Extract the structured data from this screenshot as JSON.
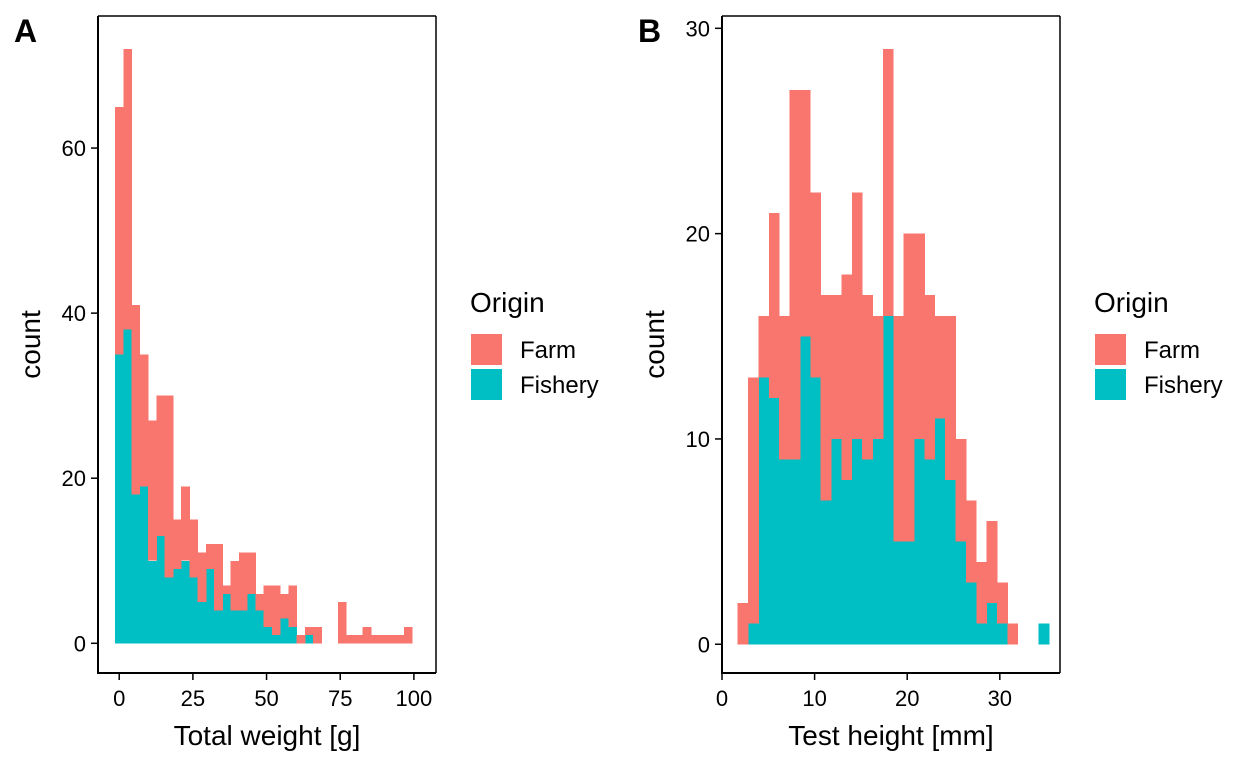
{
  "colors": {
    "farm": "#F8766D",
    "fishery": "#00BFC4",
    "axis": "#000000",
    "background": "#FFFFFF"
  },
  "chart_data": [
    {
      "type": "bar",
      "subtype": "stacked histogram",
      "panel_label": "A",
      "xlabel": "Total weight  [g]",
      "ylabel": "count",
      "xlim": [
        -7.2,
        107.5
      ],
      "ylim": [
        -3.6,
        76
      ],
      "x_ticks": [
        0,
        25,
        50,
        75,
        100
      ],
      "y_ticks": [
        0,
        20,
        40,
        60
      ],
      "bin_width": 2.8,
      "bin_starts": [
        -1.4,
        1.4,
        4.2,
        7.0,
        9.8,
        12.6,
        15.4,
        18.2,
        21.0,
        23.8,
        26.6,
        29.4,
        32.2,
        35.0,
        37.8,
        40.6,
        43.4,
        46.2,
        49.0,
        51.8,
        54.6,
        57.4,
        60.2,
        63.0,
        65.8,
        68.6,
        71.4,
        74.2,
        77.0,
        79.8,
        82.6,
        85.4,
        88.2,
        91.0,
        93.8,
        96.6,
        99.4
      ],
      "legend": {
        "title": "Origin",
        "position": "right"
      },
      "grid": false,
      "series": [
        {
          "name": "Fishery",
          "color": "#00BFC4",
          "values": [
            35,
            38,
            18,
            19,
            10,
            13,
            8,
            9,
            10,
            8,
            5,
            9,
            4,
            6,
            4,
            4,
            6,
            4,
            2,
            1,
            3,
            2,
            0,
            1,
            0,
            0,
            0,
            0,
            0,
            0,
            0,
            0,
            0,
            0,
            0,
            0,
            0
          ]
        },
        {
          "name": "Farm",
          "color": "#F8766D",
          "values": [
            30,
            34,
            23,
            16,
            17,
            17,
            22,
            6,
            9,
            7,
            6,
            3,
            8,
            1,
            6,
            7,
            5,
            2,
            5,
            6,
            3,
            5,
            1,
            1,
            2,
            0,
            0,
            5,
            1,
            1,
            2,
            1,
            1,
            1,
            1,
            2,
            0
          ]
        }
      ]
    },
    {
      "type": "bar",
      "subtype": "stacked histogram",
      "panel_label": "B",
      "xlabel": "Test height  [mm]",
      "ylabel": "count",
      "xlim": [
        0,
        36.5
      ],
      "ylim": [
        -1.4,
        30.6
      ],
      "x_ticks": [
        0,
        10,
        20,
        30
      ],
      "y_ticks": [
        0,
        10,
        20,
        30
      ],
      "bin_width": 1.12,
      "bin_starts": [
        1.7,
        2.82,
        3.94,
        5.06,
        6.18,
        7.3,
        8.42,
        9.54,
        10.66,
        11.78,
        12.9,
        14.02,
        15.14,
        16.26,
        17.38,
        18.5,
        19.62,
        20.74,
        21.86,
        22.98,
        24.1,
        25.22,
        26.34,
        27.46,
        28.58,
        29.7,
        30.82,
        31.94,
        33.06,
        34.18,
        35.3
      ],
      "legend": {
        "title": "Origin",
        "position": "right"
      },
      "grid": false,
      "series": [
        {
          "name": "Fishery",
          "color": "#00BFC4",
          "values": [
            0,
            1,
            13,
            12,
            9,
            9,
            15,
            13,
            7,
            10,
            8,
            10,
            9,
            10,
            16,
            5,
            5,
            10,
            9,
            11,
            8,
            5,
            3,
            1,
            2,
            1,
            0,
            0,
            0,
            1,
            0
          ]
        },
        {
          "name": "Farm",
          "color": "#F8766D",
          "values": [
            2,
            12,
            3,
            9,
            7,
            18,
            12,
            9,
            10,
            7,
            10,
            12,
            8,
            6,
            13,
            11,
            15,
            10,
            8,
            5,
            8,
            5,
            4,
            3,
            4,
            2,
            1,
            0,
            0,
            0,
            0
          ]
        }
      ]
    }
  ]
}
